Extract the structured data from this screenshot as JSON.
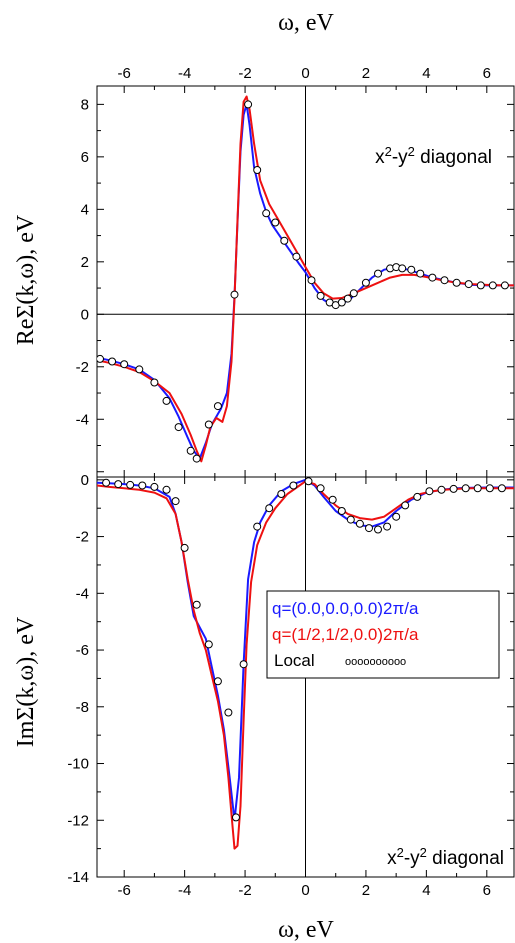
{
  "top_axis_label": "ω, eV",
  "bottom_axis_label": "ω, eV",
  "colors": {
    "blue": "#1a1aff",
    "red": "#ee1111",
    "marker_fill": "#ffffff",
    "marker_stroke": "#000000"
  },
  "legend": {
    "items": [
      {
        "text": "q=(0.0,0.0,0.0)2π/a",
        "color": "#1a1aff"
      },
      {
        "text": "q=(1/2,1/2,0.0)2π/a",
        "color": "#ee1111"
      },
      {
        "text": "Local",
        "color": "#000000",
        "marker_text": "oooooooooo"
      }
    ]
  },
  "chart_data": [
    {
      "type": "line",
      "ylabel": "ReΣ(k,ω), eV",
      "annotation": "x²-y² diagonal",
      "xlim": [
        -6.9,
        6.9
      ],
      "ylim": [
        -6.2,
        8.7
      ],
      "xticks": [
        -6,
        -4,
        -2,
        0,
        2,
        4,
        6
      ],
      "yticks": [
        -4,
        -2,
        0,
        2,
        4,
        6,
        8
      ],
      "series": [
        {
          "color": "blue",
          "x": [
            -6.9,
            -6.5,
            -6,
            -5.5,
            -5,
            -4.5,
            -4.2,
            -3.9,
            -3.7,
            -3.5,
            -3.3,
            -3.1,
            -2.8,
            -2.6,
            -2.45,
            -2.35,
            -2.25,
            -2.15,
            -2.05,
            -1.95,
            -1.85,
            -1.7,
            -1.5,
            -1.3,
            -1.1,
            -0.8,
            -0.5,
            -0.2,
            0,
            0.3,
            0.6,
            0.9,
            1.2,
            1.5,
            1.8,
            2.2,
            2.6,
            3,
            3.4,
            3.8,
            4.2,
            4.6,
            5,
            5.5,
            6,
            6.5,
            6.9
          ],
          "y": [
            -1.65,
            -1.75,
            -1.9,
            -2.1,
            -2.5,
            -3.2,
            -3.9,
            -4.7,
            -5.2,
            -5.5,
            -4.9,
            -4.2,
            -3.6,
            -3.0,
            -1.5,
            0.7,
            3.5,
            6.2,
            7.6,
            8.0,
            7.2,
            5.6,
            4.6,
            3.9,
            3.4,
            2.9,
            2.4,
            1.9,
            1.6,
            1.0,
            0.55,
            0.35,
            0.4,
            0.6,
            0.95,
            1.4,
            1.7,
            1.8,
            1.7,
            1.55,
            1.4,
            1.3,
            1.2,
            1.12,
            1.1,
            1.1,
            1.1
          ]
        },
        {
          "color": "red",
          "x": [
            -6.9,
            -6.5,
            -6,
            -5.5,
            -5,
            -4.5,
            -4.1,
            -3.8,
            -3.6,
            -3.45,
            -3.3,
            -3.15,
            -2.95,
            -2.75,
            -2.6,
            -2.45,
            -2.35,
            -2.25,
            -2.15,
            -2.05,
            -1.95,
            -1.85,
            -1.7,
            -1.5,
            -1.2,
            -0.9,
            -0.5,
            -0.2,
            0,
            0.3,
            0.6,
            0.9,
            1.2,
            1.6,
            2,
            2.4,
            2.8,
            3.2,
            3.6,
            4,
            4.5,
            5,
            5.5,
            6,
            6.5,
            6.9
          ],
          "y": [
            -1.75,
            -1.85,
            -2.0,
            -2.2,
            -2.55,
            -3.0,
            -3.8,
            -4.6,
            -5.2,
            -5.6,
            -5.0,
            -4.3,
            -3.95,
            -4.1,
            -3.5,
            -1.8,
            0.6,
            3.6,
            6.5,
            8.1,
            8.3,
            7.8,
            6.5,
            5.1,
            4.2,
            3.6,
            2.8,
            2.2,
            1.8,
            1.2,
            0.8,
            0.6,
            0.62,
            0.8,
            1.0,
            1.2,
            1.4,
            1.5,
            1.5,
            1.42,
            1.3,
            1.2,
            1.15,
            1.12,
            1.1,
            1.1
          ]
        },
        {
          "color": "marker",
          "x": [
            -6.8,
            -6.4,
            -6,
            -5.5,
            -5,
            -4.6,
            -4.2,
            -3.8,
            -3.6,
            -3.2,
            -2.9,
            -2.35,
            -1.9,
            -1.6,
            -1.3,
            -1.0,
            -0.7,
            -0.3,
            0.2,
            0.5,
            0.8,
            1.0,
            1.2,
            1.4,
            1.6,
            2.0,
            2.4,
            2.8,
            3.0,
            3.2,
            3.5,
            3.8,
            4.2,
            4.6,
            5.0,
            5.4,
            5.8,
            6.2,
            6.6
          ],
          "y": [
            -1.7,
            -1.8,
            -1.9,
            -2.1,
            -2.6,
            -3.3,
            -4.3,
            -5.2,
            -5.5,
            -4.2,
            -3.5,
            0.75,
            8.0,
            5.5,
            3.85,
            3.5,
            2.8,
            2.2,
            1.3,
            0.7,
            0.45,
            0.35,
            0.45,
            0.6,
            0.8,
            1.2,
            1.55,
            1.75,
            1.8,
            1.75,
            1.7,
            1.55,
            1.4,
            1.3,
            1.2,
            1.15,
            1.1,
            1.1,
            1.1
          ]
        }
      ]
    },
    {
      "type": "line",
      "ylabel": "ImΣ(k,ω), eV",
      "annotation": "x²-y² diagonal",
      "xlim": [
        -6.9,
        6.9
      ],
      "ylim": [
        -14,
        0.1
      ],
      "xticks": [
        -6,
        -4,
        -2,
        0,
        2,
        4,
        6
      ],
      "yticks": [
        -14,
        -12,
        -10,
        -8,
        -6,
        -4,
        -2,
        0
      ],
      "series": [
        {
          "color": "blue",
          "x": [
            -6.9,
            -6.5,
            -6,
            -5.5,
            -5,
            -4.5,
            -4.3,
            -4.1,
            -3.9,
            -3.7,
            -3.5,
            -3.3,
            -3.1,
            -2.9,
            -2.7,
            -2.5,
            -2.35,
            -2.2,
            -2.05,
            -1.9,
            -1.7,
            -1.5,
            -1.2,
            -0.8,
            -0.4,
            0,
            0.3,
            0.6,
            1,
            1.4,
            1.8,
            2.2,
            2.6,
            3,
            3.5,
            4,
            4.5,
            5,
            5.5,
            6,
            6.5,
            6.9
          ],
          "y": [
            -0.1,
            -0.12,
            -0.15,
            -0.2,
            -0.3,
            -0.6,
            -1.2,
            -2.2,
            -3.6,
            -4.8,
            -5.2,
            -5.6,
            -6.6,
            -7.6,
            -8.8,
            -10.6,
            -12.0,
            -10.5,
            -6.5,
            -3.5,
            -2.2,
            -1.5,
            -0.9,
            -0.4,
            -0.15,
            0.0,
            -0.2,
            -0.6,
            -1.1,
            -1.4,
            -1.6,
            -1.65,
            -1.5,
            -1.1,
            -0.7,
            -0.45,
            -0.35,
            -0.3,
            -0.28,
            -0.27,
            -0.27,
            -0.27
          ]
        },
        {
          "color": "red",
          "x": [
            -6.9,
            -6.5,
            -6,
            -5.5,
            -5,
            -4.6,
            -4.3,
            -4.1,
            -3.9,
            -3.7,
            -3.5,
            -3.3,
            -3.1,
            -2.9,
            -2.7,
            -2.55,
            -2.45,
            -2.35,
            -2.25,
            -2.15,
            -2.05,
            -1.95,
            -1.8,
            -1.6,
            -1.3,
            -1.0,
            -0.6,
            -0.2,
            0,
            0.3,
            0.6,
            1,
            1.4,
            1.8,
            2.2,
            2.6,
            3,
            3.4,
            3.8,
            4.2,
            4.6,
            5,
            5.5,
            6,
            6.5,
            6.9
          ],
          "y": [
            -0.2,
            -0.25,
            -0.3,
            -0.35,
            -0.45,
            -0.65,
            -1.2,
            -2.2,
            -3.5,
            -4.6,
            -5.4,
            -6.0,
            -6.9,
            -7.8,
            -9.0,
            -10.5,
            -11.8,
            -13.0,
            -12.9,
            -11.5,
            -8.5,
            -5.8,
            -3.6,
            -2.3,
            -1.5,
            -1.0,
            -0.5,
            -0.2,
            -0.05,
            -0.15,
            -0.5,
            -0.9,
            -1.2,
            -1.35,
            -1.4,
            -1.3,
            -1.0,
            -0.7,
            -0.5,
            -0.4,
            -0.35,
            -0.32,
            -0.3,
            -0.3,
            -0.3,
            -0.3
          ]
        },
        {
          "color": "marker",
          "x": [
            -6.6,
            -6.2,
            -5.8,
            -5.4,
            -5.0,
            -4.6,
            -4.3,
            -4.0,
            -3.6,
            -3.2,
            -2.9,
            -2.55,
            -2.3,
            -2.05,
            -1.6,
            -1.2,
            -0.8,
            -0.4,
            0.1,
            0.5,
            0.9,
            1.2,
            1.5,
            1.8,
            2.1,
            2.4,
            2.7,
            3.0,
            3.3,
            3.7,
            4.1,
            4.5,
            4.9,
            5.3,
            5.7,
            6.1,
            6.5
          ],
          "y": [
            -0.1,
            -0.15,
            -0.18,
            -0.2,
            -0.25,
            -0.35,
            -0.75,
            -2.4,
            -4.4,
            -5.8,
            -7.1,
            -8.2,
            -11.9,
            -6.5,
            -1.65,
            -1.0,
            -0.5,
            -0.2,
            -0.05,
            -0.3,
            -0.7,
            -1.1,
            -1.4,
            -1.55,
            -1.7,
            -1.75,
            -1.65,
            -1.3,
            -0.9,
            -0.6,
            -0.4,
            -0.35,
            -0.32,
            -0.3,
            -0.3,
            -0.3,
            -0.3
          ]
        }
      ]
    }
  ]
}
